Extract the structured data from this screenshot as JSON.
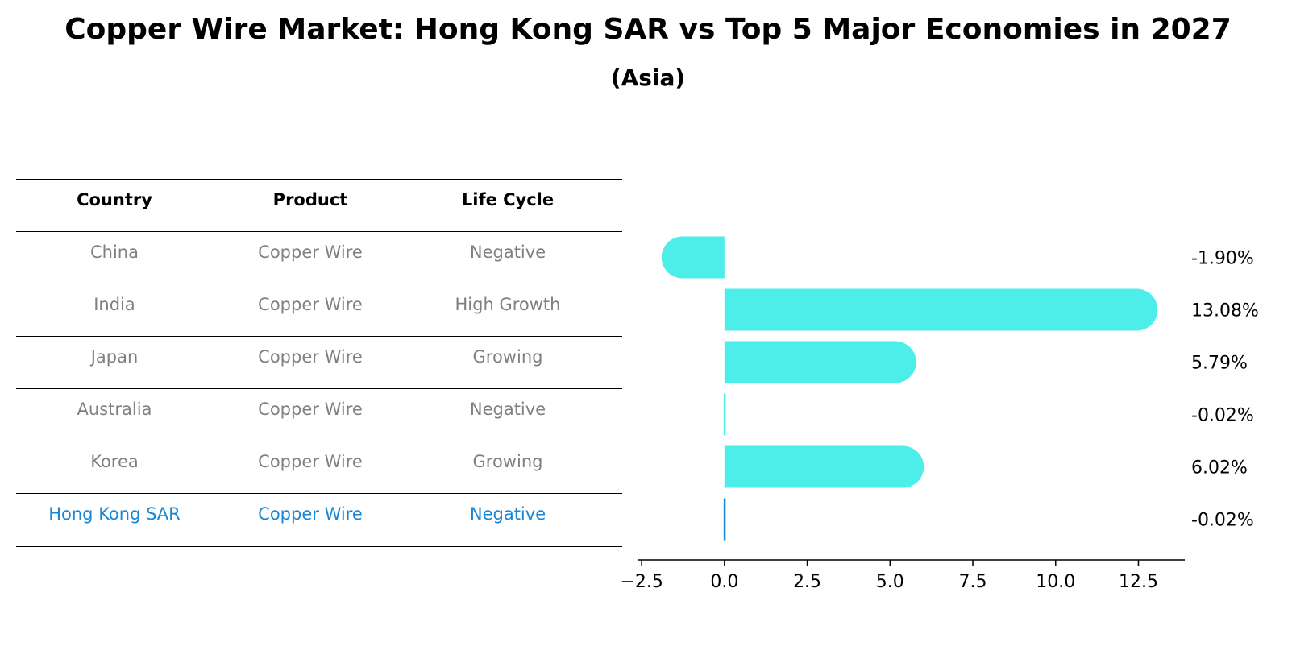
{
  "title": "Copper Wire Market: Hong Kong SAR vs Top 5 Major Economies in 2027",
  "subtitle": "(Asia)",
  "colors": {
    "bar": "#4dede9",
    "highlight": "#1a86d6",
    "muted": "#808080"
  },
  "table": {
    "headers": [
      "Country",
      "Product",
      "Life Cycle"
    ],
    "rows": [
      [
        "China",
        "Copper Wire",
        "Negative"
      ],
      [
        "India",
        "Copper Wire",
        "High Growth"
      ],
      [
        "Japan",
        "Copper Wire",
        "Growing"
      ],
      [
        "Australia",
        "Copper Wire",
        "Negative"
      ],
      [
        "Korea",
        "Copper Wire",
        "Growing"
      ],
      [
        "Hong Kong SAR",
        "Copper Wire",
        "Negative"
      ]
    ],
    "highlight_row": 5
  },
  "chart_data": {
    "type": "bar",
    "orientation": "horizontal",
    "title": "Copper Wire Market: Hong Kong SAR vs Top 5 Major Economies in 2027",
    "subtitle": "(Asia)",
    "categories": [
      "China",
      "India",
      "Japan",
      "Australia",
      "Korea",
      "Hong Kong SAR"
    ],
    "values": [
      -1.9,
      13.08,
      5.79,
      -0.02,
      6.02,
      -0.02
    ],
    "value_labels": [
      "-1.90%",
      "13.08%",
      "5.79%",
      "-0.02%",
      "6.02%",
      "-0.02%"
    ],
    "xticks": [
      -2.5,
      0.0,
      2.5,
      5.0,
      7.5,
      10.0,
      12.5
    ],
    "xtick_labels": [
      "−2.5",
      "0.0",
      "2.5",
      "5.0",
      "7.5",
      "10.0",
      "12.5"
    ],
    "xlim": [
      -2.6,
      13.9
    ],
    "xlabel": "",
    "ylabel": "",
    "highlight_index": 5
  }
}
